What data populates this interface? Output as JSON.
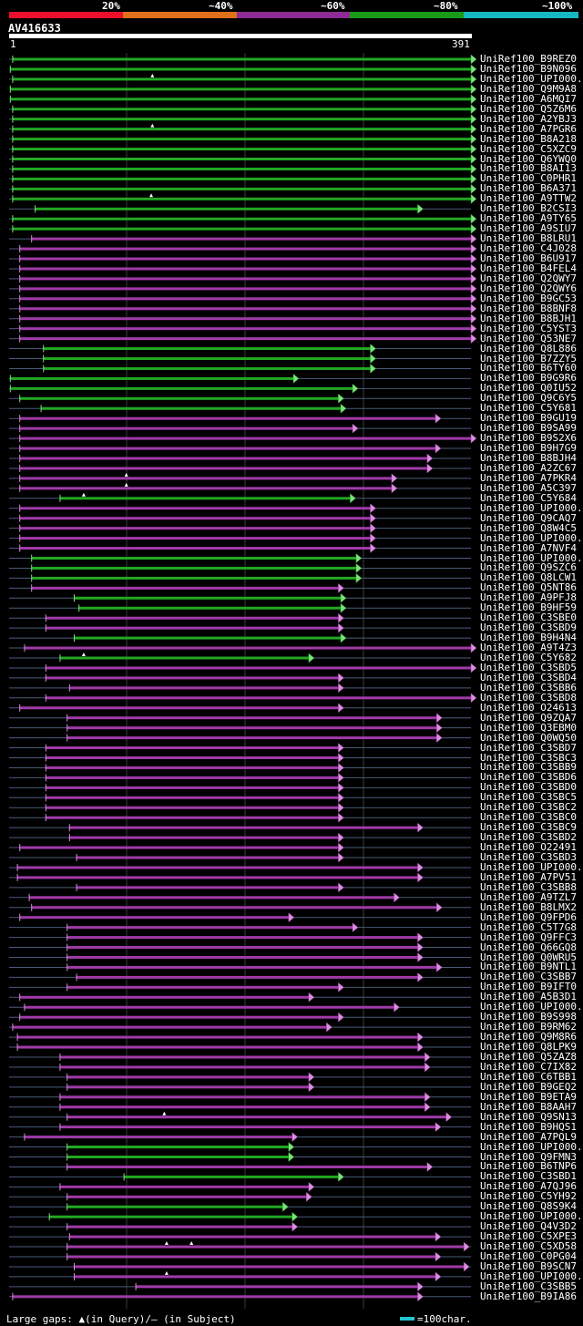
{
  "legend": [
    {
      "label": "20%",
      "color": "#e8102a"
    },
    {
      "label": "~40%",
      "color": "#e0701a"
    },
    {
      "label": "~60%",
      "color": "#8e2b94"
    },
    {
      "label": "~80%",
      "color": "#199a19"
    },
    {
      "label": "~100%",
      "color": "#16b8c0"
    }
  ],
  "query": {
    "name": "AV416633",
    "start": "1",
    "end": "391"
  },
  "colors": {
    "green": "#22a822",
    "purple": "#a03aa8",
    "connector": "#4a5a78",
    "gridline": "#3a3a3a",
    "arrow_green": "#7fe07f",
    "arrow_purple": "#d890dc"
  },
  "hits": [
    {
      "name": "UniRef100_B9REZ0",
      "color": "green",
      "start": 4,
      "end": 391,
      "ss": 1,
      "tail": false
    },
    {
      "name": "UniRef100_B9N096",
      "color": "green",
      "start": 2,
      "end": 391,
      "ss": 1,
      "tail": false
    },
    {
      "name": "UniRef100_UPI000..",
      "color": "green",
      "start": 4,
      "end": 391,
      "ss": 1,
      "tail": false,
      "tri": 122
    },
    {
      "name": "UniRef100_Q9M9A8",
      "color": "green",
      "start": 2,
      "end": 391,
      "ss": 1,
      "tail": false
    },
    {
      "name": "UniRef100_A6MQI7",
      "color": "green",
      "start": 2,
      "end": 391,
      "ss": 1,
      "tail": false
    },
    {
      "name": "UniRef100_Q5Z6M6",
      "color": "green",
      "start": 4,
      "end": 391,
      "ss": 1,
      "tail": false
    },
    {
      "name": "UniRef100_A2YBJ3",
      "color": "green",
      "start": 4,
      "end": 391,
      "ss": 1,
      "tail": false
    },
    {
      "name": "UniRef100_A7PGR6",
      "color": "green",
      "start": 4,
      "end": 391,
      "ss": 1,
      "tail": false,
      "tri": 122
    },
    {
      "name": "UniRef100_B8A218",
      "color": "green",
      "start": 4,
      "end": 391,
      "ss": 1,
      "tail": false
    },
    {
      "name": "UniRef100_C5XZC9",
      "color": "green",
      "start": 4,
      "end": 391,
      "ss": 1,
      "tail": false
    },
    {
      "name": "UniRef100_Q6YWQ0",
      "color": "green",
      "start": 4,
      "end": 391,
      "ss": 1,
      "tail": false
    },
    {
      "name": "UniRef100_B8AI13",
      "color": "green",
      "start": 4,
      "end": 391,
      "ss": 1,
      "tail": false
    },
    {
      "name": "UniRef100_C0PHR1",
      "color": "green",
      "start": 4,
      "end": 391,
      "ss": 1,
      "tail": false
    },
    {
      "name": "UniRef100_B6A371",
      "color": "green",
      "start": 4,
      "end": 391,
      "ss": 1,
      "tail": false
    },
    {
      "name": "UniRef100_A9TTW2",
      "color": "green",
      "start": 4,
      "end": 391,
      "ss": 1,
      "tail": false,
      "tri": 121
    },
    {
      "name": "UniRef100_B2CSI3",
      "color": "green",
      "start": 23,
      "end": 346,
      "ss": 1,
      "tail": true
    },
    {
      "name": "UniRef100_A9TY65",
      "color": "green",
      "start": 4,
      "end": 391,
      "ss": 1,
      "tail": false
    },
    {
      "name": "UniRef100_A9SIU7",
      "color": "green",
      "start": 4,
      "end": 391,
      "ss": 1,
      "tail": false
    },
    {
      "name": "UniRef100_B8LRU1",
      "color": "purple",
      "start": 20,
      "end": 391,
      "ss": 1,
      "tail": false
    },
    {
      "name": "UniRef100_C4J028",
      "color": "purple",
      "start": 10,
      "end": 391,
      "ss": 1,
      "tail": false
    },
    {
      "name": "UniRef100_B6U917",
      "color": "purple",
      "start": 10,
      "end": 391,
      "ss": 1,
      "tail": false
    },
    {
      "name": "UniRef100_B4FEL4",
      "color": "purple",
      "start": 10,
      "end": 391,
      "ss": 1,
      "tail": false
    },
    {
      "name": "UniRef100_Q2QWY7",
      "color": "purple",
      "start": 10,
      "end": 391,
      "ss": 1,
      "tail": false
    },
    {
      "name": "UniRef100_Q2QWY6",
      "color": "purple",
      "start": 10,
      "end": 391,
      "ss": 1,
      "tail": false
    },
    {
      "name": "UniRef100_B9GC53",
      "color": "purple",
      "start": 10,
      "end": 391,
      "ss": 1,
      "tail": false
    },
    {
      "name": "UniRef100_B8BNF8",
      "color": "purple",
      "start": 10,
      "end": 391,
      "ss": 1,
      "tail": false
    },
    {
      "name": "UniRef100_B8BJH1",
      "color": "purple",
      "start": 10,
      "end": 391,
      "ss": 1,
      "tail": false
    },
    {
      "name": "UniRef100_C5YST3",
      "color": "purple",
      "start": 10,
      "end": 391,
      "ss": 1,
      "tail": false
    },
    {
      "name": "UniRef100_Q53NE7",
      "color": "purple",
      "start": 10,
      "end": 391,
      "ss": 1,
      "tail": false
    },
    {
      "name": "UniRef100_Q8L886",
      "color": "green",
      "start": 30,
      "end": 306,
      "ss": 1,
      "tail": true
    },
    {
      "name": "UniRef100_B7ZZY5",
      "color": "green",
      "start": 30,
      "end": 306,
      "ss": 1,
      "tail": true
    },
    {
      "name": "UniRef100_B6TY60",
      "color": "green",
      "start": 30,
      "end": 306,
      "ss": 1,
      "tail": true
    },
    {
      "name": "UniRef100_B9G9R6",
      "color": "green",
      "start": 2,
      "end": 241,
      "ss": 1,
      "tail": true
    },
    {
      "name": "UniRef100_Q0IU52",
      "color": "green",
      "start": 2,
      "end": 291,
      "ss": 1,
      "tail": true
    },
    {
      "name": "UniRef100_Q9C6Y5",
      "color": "green",
      "start": 10,
      "end": 279,
      "ss": 1,
      "tail": true
    },
    {
      "name": "UniRef100_C5Y681",
      "color": "green",
      "start": 28,
      "end": 281,
      "ss": 1,
      "tail": true
    },
    {
      "name": "UniRef100_B9GU19",
      "color": "purple",
      "start": 10,
      "end": 361,
      "ss": 1,
      "tail": true
    },
    {
      "name": "UniRef100_B9SA99",
      "color": "purple",
      "start": 10,
      "end": 291,
      "ss": 1,
      "tail": true
    },
    {
      "name": "UniRef100_B9S2X6",
      "color": "purple",
      "start": 10,
      "end": 391,
      "ss": 1,
      "tail": false
    },
    {
      "name": "UniRef100_B9H7G9",
      "color": "purple",
      "start": 10,
      "end": 361,
      "ss": 1,
      "tail": true
    },
    {
      "name": "UniRef100_B8BJH4",
      "color": "purple",
      "start": 10,
      "end": 354,
      "ss": 1,
      "tail": true
    },
    {
      "name": "UniRef100_A2ZC67",
      "color": "purple",
      "start": 10,
      "end": 354,
      "ss": 1,
      "tail": true
    },
    {
      "name": "UniRef100_A7PKR4",
      "color": "purple",
      "start": 10,
      "end": 324,
      "ss": 1,
      "tail": true,
      "tri": 100
    },
    {
      "name": "UniRef100_A5C397",
      "color": "purple",
      "start": 10,
      "end": 324,
      "ss": 1,
      "tail": true,
      "tri": 100
    },
    {
      "name": "UniRef100_C5Y684",
      "color": "green",
      "start": 44,
      "end": 289,
      "ss": 1,
      "tail": true,
      "tri": 64
    },
    {
      "name": "UniRef100_UPI000..",
      "color": "purple",
      "start": 10,
      "end": 306,
      "ss": 1,
      "tail": true
    },
    {
      "name": "UniRef100_Q9CAQ7",
      "color": "purple",
      "start": 10,
      "end": 306,
      "ss": 1,
      "tail": true
    },
    {
      "name": "UniRef100_Q8W4C5",
      "color": "purple",
      "start": 10,
      "end": 306,
      "ss": 1,
      "tail": true
    },
    {
      "name": "UniRef100_UPI000..",
      "color": "purple",
      "start": 10,
      "end": 306,
      "ss": 1,
      "tail": true
    },
    {
      "name": "UniRef100_A7NVF4",
      "color": "purple",
      "start": 10,
      "end": 306,
      "ss": 1,
      "tail": true
    },
    {
      "name": "UniRef100_UPI000..",
      "color": "green",
      "start": 20,
      "end": 294,
      "ss": 1,
      "tail": true
    },
    {
      "name": "UniRef100_Q9SZC6",
      "color": "green",
      "start": 20,
      "end": 294,
      "ss": 1,
      "tail": true
    },
    {
      "name": "UniRef100_Q8LCW1",
      "color": "green",
      "start": 20,
      "end": 294,
      "ss": 1,
      "tail": true
    },
    {
      "name": "UniRef100_Q5NT86",
      "color": "purple",
      "start": 20,
      "end": 279,
      "ss": 1,
      "tail": true
    },
    {
      "name": "UniRef100_A9PFJ8",
      "color": "green",
      "start": 56,
      "end": 281,
      "ss": 1,
      "tail": true
    },
    {
      "name": "UniRef100_B9HF59",
      "color": "green",
      "start": 60,
      "end": 281,
      "ss": 1,
      "tail": true
    },
    {
      "name": "UniRef100_C3SBE0",
      "color": "purple",
      "start": 32,
      "end": 279,
      "ss": 1,
      "tail": true
    },
    {
      "name": "UniRef100_C3SBD9",
      "color": "purple",
      "start": 32,
      "end": 279,
      "ss": 1,
      "tail": true
    },
    {
      "name": "UniRef100_B9H4N4",
      "color": "green",
      "start": 56,
      "end": 281,
      "ss": 1,
      "tail": true
    },
    {
      "name": "UniRef100_A9T4Z3",
      "color": "purple",
      "start": 14,
      "end": 391,
      "ss": 1,
      "tail": false
    },
    {
      "name": "UniRef100_C5Y682",
      "color": "green",
      "start": 44,
      "end": 254,
      "ss": 1,
      "tail": true,
      "tri": 64
    },
    {
      "name": "UniRef100_C3SBD5",
      "color": "purple",
      "start": 32,
      "end": 391,
      "ss": 1,
      "tail": false
    },
    {
      "name": "UniRef100_C3SBD4",
      "color": "purple",
      "start": 32,
      "end": 279,
      "ss": 1,
      "tail": true
    },
    {
      "name": "UniRef100_C3SBB6",
      "color": "purple",
      "start": 52,
      "end": 279,
      "ss": 1,
      "tail": true
    },
    {
      "name": "UniRef100_C3SBD8",
      "color": "purple",
      "start": 32,
      "end": 391,
      "ss": 1,
      "tail": false
    },
    {
      "name": "UniRef100_O24613",
      "color": "purple",
      "start": 10,
      "end": 279,
      "ss": 1,
      "tail": true
    },
    {
      "name": "UniRef100_Q9ZQA7",
      "color": "purple",
      "start": 50,
      "end": 362,
      "ss": 1,
      "tail": true
    },
    {
      "name": "UniRef100_Q3EBM0",
      "color": "purple",
      "start": 50,
      "end": 362,
      "ss": 1,
      "tail": true
    },
    {
      "name": "UniRef100_Q0WQ50",
      "color": "purple",
      "start": 50,
      "end": 362,
      "ss": 1,
      "tail": true
    },
    {
      "name": "UniRef100_C3SBD7",
      "color": "purple",
      "start": 32,
      "end": 279,
      "ss": 1,
      "tail": true
    },
    {
      "name": "UniRef100_C3SBC3",
      "color": "purple",
      "start": 32,
      "end": 279,
      "ss": 1,
      "tail": true
    },
    {
      "name": "UniRef100_C3SBB9",
      "color": "purple",
      "start": 32,
      "end": 279,
      "ss": 1,
      "tail": true
    },
    {
      "name": "UniRef100_C3SBD6",
      "color": "purple",
      "start": 32,
      "end": 279,
      "ss": 1,
      "tail": true
    },
    {
      "name": "UniRef100_C3SBD0",
      "color": "purple",
      "start": 32,
      "end": 279,
      "ss": 1,
      "tail": true
    },
    {
      "name": "UniRef100_C3SBC5",
      "color": "purple",
      "start": 32,
      "end": 279,
      "ss": 1,
      "tail": true
    },
    {
      "name": "UniRef100_C3SBC2",
      "color": "purple",
      "start": 32,
      "end": 279,
      "ss": 1,
      "tail": true
    },
    {
      "name": "UniRef100_C3SBC0",
      "color": "purple",
      "start": 32,
      "end": 279,
      "ss": 1,
      "tail": true
    },
    {
      "name": "UniRef100_C3SBC9",
      "color": "purple",
      "start": 52,
      "end": 346,
      "ss": 1,
      "tail": true
    },
    {
      "name": "UniRef100_C3SBD2",
      "color": "purple",
      "start": 52,
      "end": 279,
      "ss": 1,
      "tail": true
    },
    {
      "name": "UniRef100_O22491",
      "color": "purple",
      "start": 10,
      "end": 279,
      "ss": 1,
      "tail": true
    },
    {
      "name": "UniRef100_C3SBD3",
      "color": "purple",
      "start": 58,
      "end": 279,
      "ss": 1,
      "tail": true
    },
    {
      "name": "UniRef100_UPI000..",
      "color": "purple",
      "start": 8,
      "end": 346,
      "ss": 1,
      "tail": true
    },
    {
      "name": "UniRef100_A7PV51",
      "color": "purple",
      "start": 8,
      "end": 346,
      "ss": 1,
      "tail": true
    },
    {
      "name": "UniRef100_C3SBB8",
      "color": "purple",
      "start": 58,
      "end": 279,
      "ss": 1,
      "tail": true
    },
    {
      "name": "UniRef100_A9TZL7",
      "color": "purple",
      "start": 18,
      "end": 326,
      "ss": 1,
      "tail": true
    },
    {
      "name": "UniRef100_B8LMX2",
      "color": "purple",
      "start": 20,
      "end": 362,
      "ss": 1,
      "tail": true
    },
    {
      "name": "UniRef100_Q9FPD6",
      "color": "purple",
      "start": 10,
      "end": 237,
      "ss": 1,
      "tail": true
    },
    {
      "name": "UniRef100_C5T7G8",
      "color": "purple",
      "start": 50,
      "end": 291,
      "ss": 1,
      "tail": true
    },
    {
      "name": "UniRef100_Q9FFC3",
      "color": "purple",
      "start": 50,
      "end": 346,
      "ss": 1,
      "tail": true
    },
    {
      "name": "UniRef100_Q66GQ8",
      "color": "purple",
      "start": 50,
      "end": 346,
      "ss": 1,
      "tail": true
    },
    {
      "name": "UniRef100_Q0WRU5",
      "color": "purple",
      "start": 50,
      "end": 346,
      "ss": 1,
      "tail": true
    },
    {
      "name": "UniRef100_B9NTL1",
      "color": "purple",
      "start": 50,
      "end": 362,
      "ss": 1,
      "tail": true
    },
    {
      "name": "UniRef100_C3SBB7",
      "color": "purple",
      "start": 58,
      "end": 346,
      "ss": 1,
      "tail": true
    },
    {
      "name": "UniRef100_B9IFT0",
      "color": "purple",
      "start": 50,
      "end": 279,
      "ss": 1,
      "tail": true
    },
    {
      "name": "UniRef100_A5B3D1",
      "color": "purple",
      "start": 10,
      "end": 254,
      "ss": 1,
      "tail": true
    },
    {
      "name": "UniRef100_UPI000..",
      "color": "purple",
      "start": 14,
      "end": 326,
      "ss": 1,
      "tail": true
    },
    {
      "name": "UniRef100_B9S998",
      "color": "purple",
      "start": 10,
      "end": 279,
      "ss": 1,
      "tail": true
    },
    {
      "name": "UniRef100_B9RM62",
      "color": "purple",
      "start": 4,
      "end": 269,
      "ss": 1,
      "tail": true
    },
    {
      "name": "UniRef100_Q9M8R6",
      "color": "purple",
      "start": 8,
      "end": 346,
      "ss": 1,
      "tail": true
    },
    {
      "name": "UniRef100_Q8LPK9",
      "color": "purple",
      "start": 8,
      "end": 346,
      "ss": 1,
      "tail": true
    },
    {
      "name": "UniRef100_Q5ZAZ8",
      "color": "purple",
      "start": 44,
      "end": 352,
      "ss": 1,
      "tail": true
    },
    {
      "name": "UniRef100_C7IX82",
      "color": "purple",
      "start": 44,
      "end": 352,
      "ss": 1,
      "tail": true
    },
    {
      "name": "UniRef100_C6TBB1",
      "color": "purple",
      "start": 50,
      "end": 254,
      "ss": 1,
      "tail": true
    },
    {
      "name": "UniRef100_B9GEQ2",
      "color": "purple",
      "start": 50,
      "end": 254,
      "ss": 1,
      "tail": true
    },
    {
      "name": "UniRef100_B9ETA9",
      "color": "purple",
      "start": 44,
      "end": 352,
      "ss": 1,
      "tail": true
    },
    {
      "name": "UniRef100_B8AAH7",
      "color": "purple",
      "start": 44,
      "end": 352,
      "ss": 1,
      "tail": true
    },
    {
      "name": "UniRef100_Q9SN13",
      "color": "purple",
      "start": 50,
      "end": 370,
      "ss": 1,
      "tail": true,
      "tri": 132
    },
    {
      "name": "UniRef100_B9HQS1",
      "color": "purple",
      "start": 44,
      "end": 361,
      "ss": 1,
      "tail": true
    },
    {
      "name": "UniRef100_A7PQL9",
      "color": "purple",
      "start": 14,
      "end": 240,
      "ss": 1,
      "tail": true
    },
    {
      "name": "UniRef100_UPI000..",
      "color": "green",
      "start": 50,
      "end": 237,
      "ss": 1,
      "tail": true
    },
    {
      "name": "UniRef100_Q9FMN3",
      "color": "green",
      "start": 50,
      "end": 237,
      "ss": 1,
      "tail": true
    },
    {
      "name": "UniRef100_B6TNP6",
      "color": "purple",
      "start": 50,
      "end": 354,
      "ss": 1,
      "tail": true
    },
    {
      "name": "UniRef100_C3SBD1",
      "color": "green",
      "start": 98,
      "end": 279,
      "ss": 1,
      "tail": true
    },
    {
      "name": "UniRef100_A7QJ96",
      "color": "purple",
      "start": 44,
      "end": 254,
      "ss": 1,
      "tail": true
    },
    {
      "name": "UniRef100_C5YH92",
      "color": "purple",
      "start": 50,
      "end": 252,
      "ss": 1,
      "tail": true
    },
    {
      "name": "UniRef100_Q8S9K4",
      "color": "green",
      "start": 50,
      "end": 232,
      "ss": 1,
      "tail": true
    },
    {
      "name": "UniRef100_UPI000..",
      "color": "green",
      "start": 35,
      "end": 240,
      "ss": 1,
      "tail": true
    },
    {
      "name": "UniRef100_Q4V3D2",
      "color": "purple",
      "start": 50,
      "end": 240,
      "ss": 1,
      "tail": true
    },
    {
      "name": "UniRef100_C5XPE3",
      "color": "purple",
      "start": 52,
      "end": 361,
      "ss": 1,
      "tail": true
    },
    {
      "name": "UniRef100_C5XD58",
      "color": "purple",
      "start": 50,
      "end": 385,
      "ss": 1,
      "tail": true,
      "tri": 134,
      "tri2": 155
    },
    {
      "name": "UniRef100_C0PG04",
      "color": "purple",
      "start": 50,
      "end": 361,
      "ss": 1,
      "tail": true
    },
    {
      "name": "UniRef100_B9SCN7",
      "color": "purple",
      "start": 56,
      "end": 385,
      "ss": 1,
      "tail": true
    },
    {
      "name": "UniRef100_UPI000..",
      "color": "purple",
      "start": 56,
      "end": 361,
      "ss": 1,
      "tail": true,
      "tri": 134
    },
    {
      "name": "UniRef100_C3SBB5",
      "color": "purple",
      "start": 108,
      "end": 346,
      "ss": 1,
      "tail": true
    },
    {
      "name": "UniRef100_B9IA86",
      "color": "purple",
      "start": 4,
      "end": 346,
      "ss": 1,
      "tail": true
    }
  ],
  "footer": {
    "large_gaps_text": "Large gaps: ▲(in Query)/– (in Subject)",
    "scale_text": "=100char."
  }
}
